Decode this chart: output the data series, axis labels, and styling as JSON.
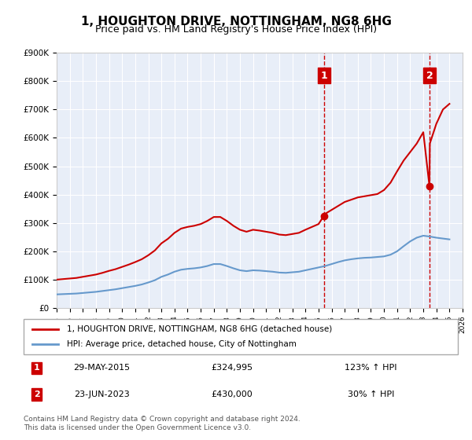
{
  "title": "1, HOUGHTON DRIVE, NOTTINGHAM, NG8 6HG",
  "subtitle": "Price paid vs. HM Land Registry's House Price Index (HPI)",
  "legend_line1": "1, HOUGHTON DRIVE, NOTTINGHAM, NG8 6HG (detached house)",
  "legend_line2": "HPI: Average price, detached house, City of Nottingham",
  "transaction1_label": "1",
  "transaction1_date": "29-MAY-2015",
  "transaction1_price": "£324,995",
  "transaction1_hpi": "123% ↑ HPI",
  "transaction1_year": 2015.4,
  "transaction2_label": "2",
  "transaction2_date": "23-JUN-2023",
  "transaction2_price": "£430,000",
  "transaction2_hpi": "30% ↑ HPI",
  "transaction2_year": 2023.47,
  "footnote": "Contains HM Land Registry data © Crown copyright and database right 2024.\nThis data is licensed under the Open Government Licence v3.0.",
  "ylim": [
    0,
    900000
  ],
  "xlim": [
    1995,
    2026
  ],
  "red_color": "#cc0000",
  "blue_color": "#6699cc",
  "bg_color": "#e8eef8",
  "plot_bg": "#ffffff",
  "hpi_years": [
    1995,
    1995.5,
    1996,
    1996.5,
    1997,
    1997.5,
    1998,
    1998.5,
    1999,
    1999.5,
    2000,
    2000.5,
    2001,
    2001.5,
    2002,
    2002.5,
    2003,
    2003.5,
    2004,
    2004.5,
    2005,
    2005.5,
    2006,
    2006.5,
    2007,
    2007.5,
    2008,
    2008.5,
    2009,
    2009.5,
    2010,
    2010.5,
    2011,
    2011.5,
    2012,
    2012.5,
    2013,
    2013.5,
    2014,
    2014.5,
    2015,
    2015.5,
    2016,
    2016.5,
    2017,
    2017.5,
    2018,
    2018.5,
    2019,
    2019.5,
    2020,
    2020.5,
    2021,
    2021.5,
    2022,
    2022.5,
    2023,
    2023.5,
    2024,
    2024.5,
    2025
  ],
  "hpi_values": [
    48000,
    49000,
    50000,
    51000,
    53000,
    55000,
    57000,
    60000,
    63000,
    66000,
    70000,
    74000,
    78000,
    83000,
    90000,
    98000,
    110000,
    118000,
    128000,
    135000,
    138000,
    140000,
    143000,
    148000,
    155000,
    155000,
    148000,
    140000,
    133000,
    130000,
    133000,
    132000,
    130000,
    128000,
    125000,
    124000,
    126000,
    128000,
    133000,
    138000,
    143000,
    148000,
    155000,
    162000,
    168000,
    172000,
    175000,
    177000,
    178000,
    180000,
    182000,
    188000,
    200000,
    218000,
    235000,
    248000,
    255000,
    252000,
    248000,
    245000,
    242000
  ],
  "red_years": [
    1995,
    1995.5,
    1996,
    1996.5,
    1997,
    1997.5,
    1998,
    1998.5,
    1999,
    1999.5,
    2000,
    2000.5,
    2001,
    2001.5,
    2002,
    2002.5,
    2003,
    2003.5,
    2004,
    2004.5,
    2005,
    2005.5,
    2006,
    2006.5,
    2007,
    2007.5,
    2008,
    2008.5,
    2009,
    2009.5,
    2010,
    2010.5,
    2011,
    2011.5,
    2012,
    2012.5,
    2013,
    2013.5,
    2014,
    2014.5,
    2015,
    2015.41,
    2015.5,
    2016,
    2016.5,
    2017,
    2017.5,
    2018,
    2018.5,
    2019,
    2019.5,
    2020,
    2020.5,
    2021,
    2021.5,
    2022,
    2022.5,
    2023,
    2023.47,
    2023.5,
    2024,
    2024.5,
    2025
  ],
  "red_values": [
    100000,
    102000,
    104000,
    106000,
    110000,
    114000,
    118000,
    124000,
    131000,
    137000,
    145000,
    153000,
    162000,
    172000,
    186000,
    203000,
    228000,
    244000,
    265000,
    280000,
    286000,
    290000,
    296000,
    307000,
    321000,
    321000,
    307000,
    290000,
    276000,
    269000,
    276000,
    273000,
    269000,
    265000,
    259000,
    257000,
    261000,
    265000,
    276000,
    286000,
    296000,
    324995,
    332000,
    346000,
    360000,
    374000,
    382000,
    390000,
    394000,
    398000,
    402000,
    416000,
    442000,
    482000,
    520000,
    550000,
    580000,
    620000,
    430000,
    580000,
    650000,
    700000,
    720000
  ],
  "marker1_x": 2015.41,
  "marker1_y": 324995,
  "marker2_x": 2023.47,
  "marker2_y": 430000
}
